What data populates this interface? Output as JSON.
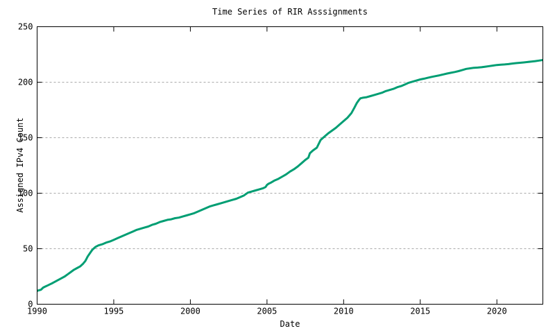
{
  "chart_data": {
    "type": "line",
    "title": "Time Series of RIR Asssignments",
    "xlabel": "Date",
    "ylabel": "Assigned IPv4 Count",
    "xlim": [
      1990,
      2023
    ],
    "ylim": [
      0,
      250
    ],
    "xticks": [
      1990,
      1995,
      2000,
      2005,
      2010,
      2015,
      2020
    ],
    "yticks": [
      0,
      50,
      100,
      150,
      200,
      250
    ],
    "grid": {
      "horizontal": true,
      "vertical": false,
      "style": "dotted",
      "color": "#a9a9a9",
      "at": [
        50,
        100,
        150,
        200
      ]
    },
    "legend_position": "none",
    "line_color": "#009E73",
    "line_width": 3,
    "border_color": "#000000",
    "background": "#ffffff",
    "series": [
      {
        "name": "Assigned IPv4 Count",
        "x": [
          1990.0,
          1990.1,
          1990.25,
          1990.4,
          1990.55,
          1990.7,
          1990.85,
          1991.0,
          1991.2,
          1991.4,
          1991.6,
          1991.8,
          1992.0,
          1992.2,
          1992.4,
          1992.6,
          1992.8,
          1993.0,
          1993.15,
          1993.3,
          1993.45,
          1993.6,
          1993.8,
          1994.0,
          1994.25,
          1994.5,
          1994.75,
          1995.0,
          1995.25,
          1995.5,
          1995.75,
          1996.0,
          1996.25,
          1996.5,
          1996.75,
          1997.0,
          1997.25,
          1997.5,
          1997.75,
          1998.0,
          1998.25,
          1998.5,
          1998.75,
          1999.0,
          1999.25,
          1999.5,
          1999.75,
          2000.0,
          2000.25,
          2000.5,
          2000.75,
          2001.0,
          2001.25,
          2001.5,
          2001.75,
          2002.0,
          2002.25,
          2002.5,
          2002.75,
          2003.0,
          2003.25,
          2003.5,
          2003.75,
          2004.0,
          2004.25,
          2004.5,
          2004.75,
          2004.9,
          2005.0,
          2005.1,
          2005.25,
          2005.5,
          2005.75,
          2006.0,
          2006.25,
          2006.5,
          2006.75,
          2007.0,
          2007.25,
          2007.5,
          2007.7,
          2007.8,
          2008.0,
          2008.25,
          2008.5,
          2008.75,
          2009.0,
          2009.25,
          2009.5,
          2009.75,
          2010.0,
          2010.25,
          2010.5,
          2010.7,
          2010.85,
          2011.0,
          2011.1,
          2011.25,
          2011.5,
          2011.75,
          2012.0,
          2012.25,
          2012.5,
          2012.75,
          2013.0,
          2013.25,
          2013.5,
          2013.75,
          2014.0,
          2014.25,
          2014.5,
          2014.75,
          2015.0,
          2015.25,
          2015.5,
          2015.75,
          2016.0,
          2016.25,
          2016.5,
          2016.75,
          2017.0,
          2017.25,
          2017.5,
          2017.75,
          2018.0,
          2018.25,
          2018.5,
          2018.75,
          2019.0,
          2019.25,
          2019.5,
          2019.75,
          2020.0,
          2020.25,
          2020.5,
          2020.75,
          2021.0,
          2021.25,
          2021.5,
          2021.75,
          2022.0,
          2022.25,
          2022.5,
          2022.75,
          2023.0
        ],
        "y": [
          12,
          12.5,
          13,
          15,
          16,
          17,
          18,
          19,
          20.5,
          22,
          23.5,
          25,
          27,
          29,
          31,
          32.5,
          34,
          36.5,
          39,
          43,
          46,
          49,
          51.5,
          53,
          54,
          55.5,
          56.5,
          58,
          59.5,
          61,
          62.5,
          64,
          65.5,
          67,
          68,
          69,
          70,
          71.5,
          72.5,
          74,
          75,
          76,
          76.5,
          77.5,
          78,
          79,
          80,
          81,
          82,
          83.5,
          85,
          86.5,
          88,
          89,
          90,
          91,
          92,
          93,
          94,
          95,
          96.5,
          98,
          100.5,
          101.5,
          102.5,
          103.5,
          104.5,
          105.5,
          107.5,
          108.5,
          109.5,
          111.5,
          113,
          115,
          117,
          119.5,
          121.5,
          124,
          127,
          130,
          132,
          136,
          138.5,
          141,
          148,
          151,
          154,
          156.5,
          159,
          162,
          165,
          168,
          172,
          177,
          181,
          184,
          185.5,
          186,
          186.5,
          187.5,
          188.5,
          189.5,
          190.5,
          192,
          193,
          194,
          195.5,
          196.5,
          198,
          199.5,
          200.5,
          201.5,
          202.5,
          203.2,
          204,
          204.8,
          205.5,
          206.2,
          207,
          207.8,
          208.5,
          209.2,
          210,
          211,
          212,
          212.5,
          213,
          213.2,
          213.5,
          214,
          214.5,
          215,
          215.5,
          215.8,
          216,
          216.3,
          216.8,
          217.2,
          217.5,
          217.8,
          218.2,
          218.6,
          219,
          219.5,
          220
        ]
      }
    ]
  }
}
